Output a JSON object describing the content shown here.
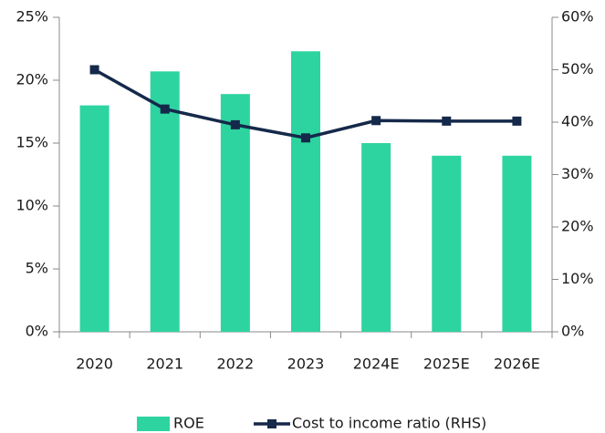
{
  "chart_data": {
    "type": "bar_line",
    "categories": [
      "2020",
      "2021",
      "2022",
      "2023",
      "2024E",
      "2025E",
      "2026E"
    ],
    "series": [
      {
        "name": "ROE",
        "type": "bar",
        "color": "#2dd4a0",
        "values": [
          18.0,
          20.7,
          18.9,
          22.3,
          15.0,
          14.0,
          14.0
        ]
      },
      {
        "name": "Cost to income ratio (RHS)",
        "type": "line",
        "axis": "y2",
        "color": "#15294a",
        "values": [
          50,
          42.5,
          39.5,
          37,
          40.3,
          40.2,
          40.2
        ]
      }
    ],
    "ylim": [
      0,
      25
    ],
    "yticks": [
      {
        "value": 0,
        "label": "0%"
      },
      {
        "value": 5,
        "label": "5%"
      },
      {
        "value": 10,
        "label": "10%"
      },
      {
        "value": 15,
        "label": "15%"
      },
      {
        "value": 20,
        "label": "20%"
      },
      {
        "value": 25,
        "label": "25%"
      }
    ],
    "y2lim": [
      0,
      60
    ],
    "y2ticks": [
      {
        "value": 0,
        "label": "0%"
      },
      {
        "value": 10,
        "label": "10%"
      },
      {
        "value": 20,
        "label": "20%"
      },
      {
        "value": 30,
        "label": "30%"
      },
      {
        "value": 40,
        "label": "40%"
      },
      {
        "value": 50,
        "label": "50%"
      },
      {
        "value": 60,
        "label": "60%"
      }
    ],
    "grid": false,
    "legend": "bottom"
  }
}
